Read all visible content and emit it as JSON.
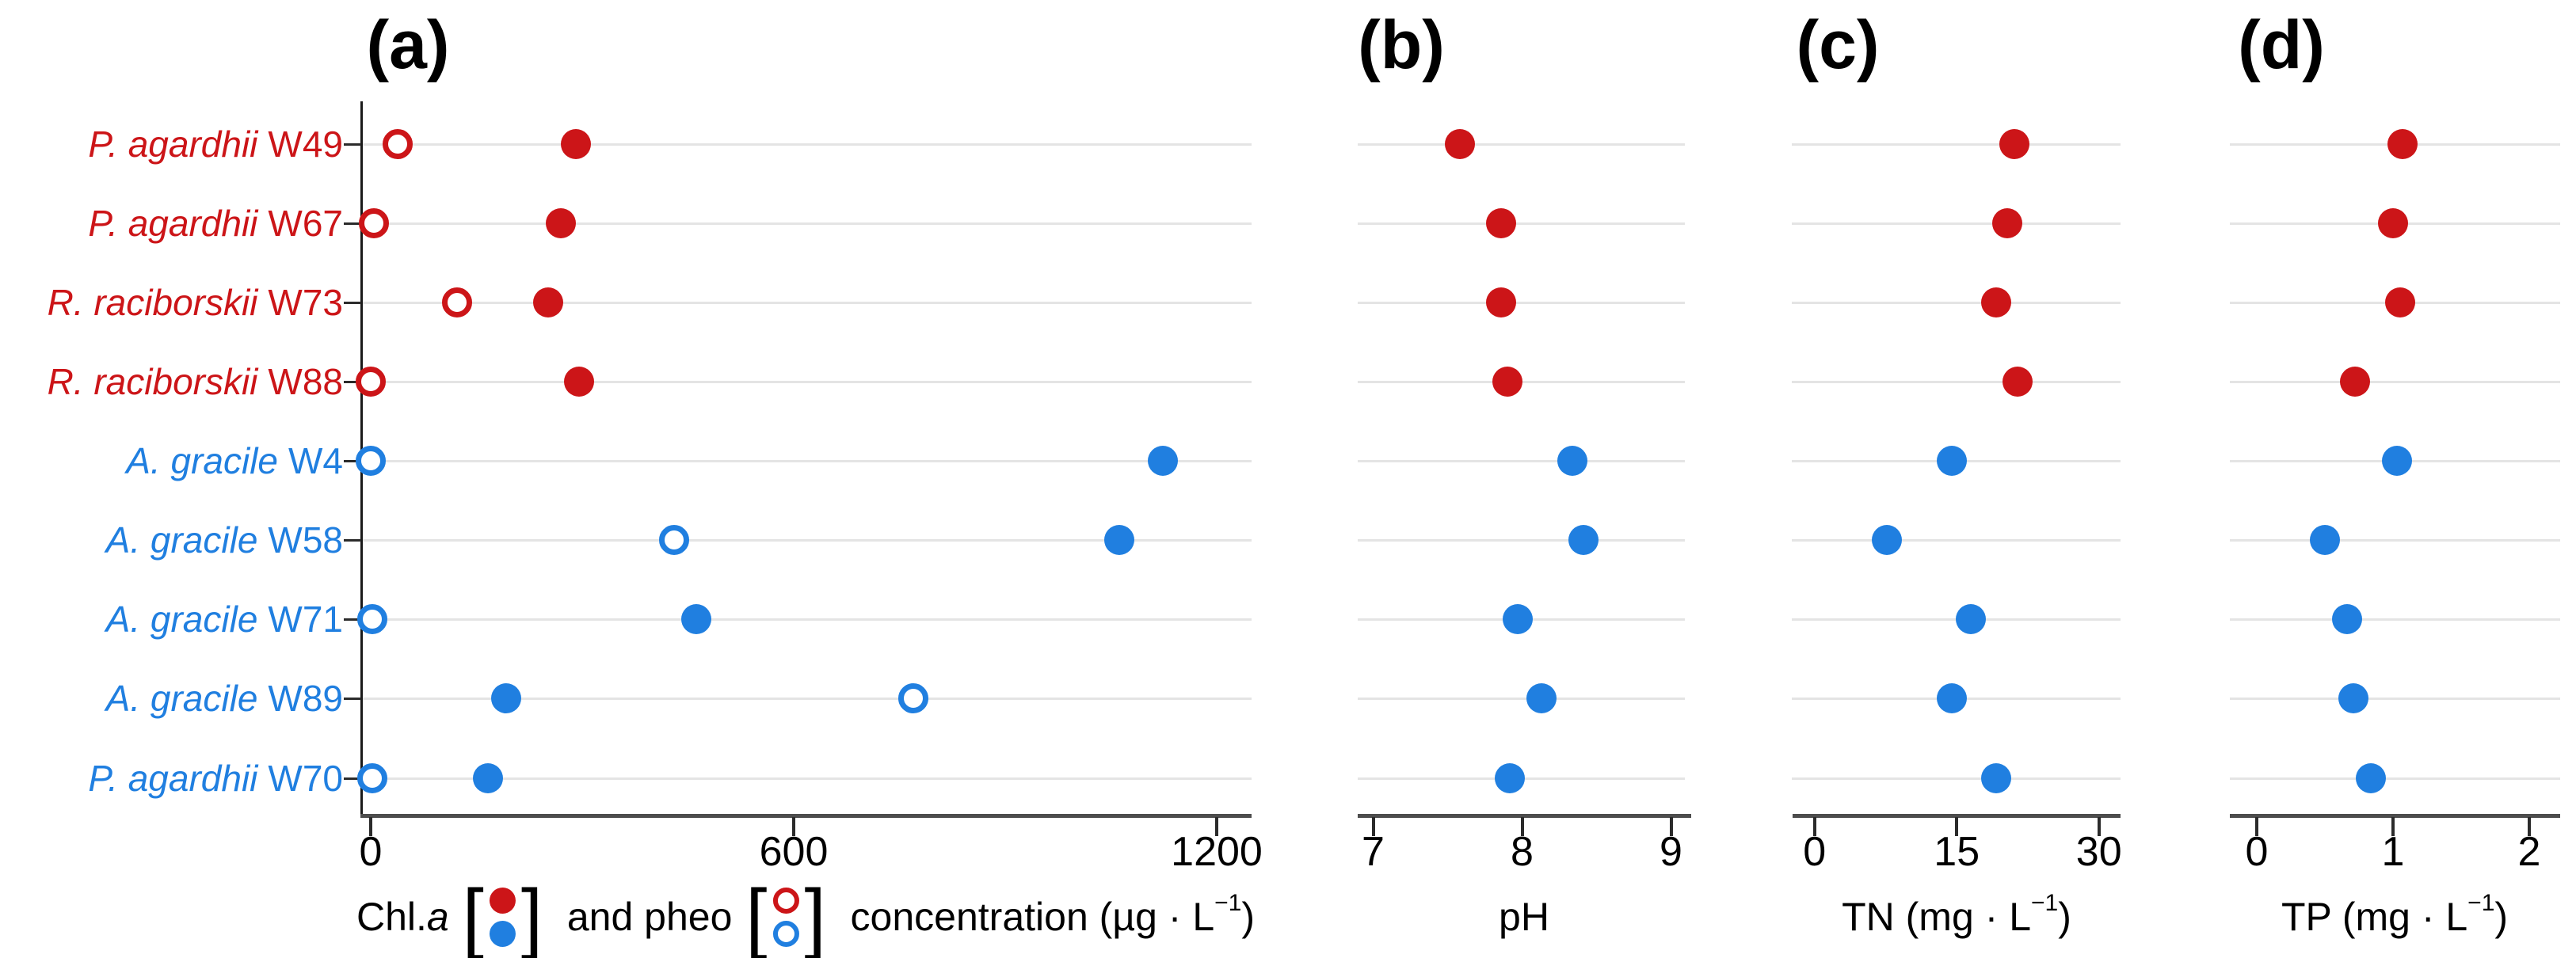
{
  "figure": {
    "background": "#FFFFFF"
  },
  "chart_data": {
    "type": "scatter",
    "subtype": "horizontal-dot-plot",
    "grid": "on",
    "categories": [
      "P. agardhii W49",
      "P. agardhii W67",
      "R. raciborskii W73",
      "R. raciborskii W88",
      "A. gracile W4",
      "A. gracile W58",
      "A. gracile W71",
      "A. gracile W89",
      "P. agardhii W70"
    ],
    "rows": [
      {
        "species": "P. agardhii",
        "strain": "W49",
        "group": "red"
      },
      {
        "species": "P. agardhii",
        "strain": "W67",
        "group": "red"
      },
      {
        "species": "R. raciborskii",
        "strain": "W73",
        "group": "red"
      },
      {
        "species": "R. raciborskii",
        "strain": "W88",
        "group": "red"
      },
      {
        "species": "A. gracile",
        "strain": "W4",
        "group": "blue"
      },
      {
        "species": "A. gracile",
        "strain": "W58",
        "group": "blue"
      },
      {
        "species": "A. gracile",
        "strain": "W71",
        "group": "blue"
      },
      {
        "species": "A. gracile",
        "strain": "W89",
        "group": "blue"
      },
      {
        "species": "P. agardhii",
        "strain": "W70",
        "group": "blue"
      }
    ],
    "colors": {
      "red": "#CC1518",
      "blue": "#207FE0",
      "gridline": "#E4E4E4",
      "axis_line": "#4D4D4D",
      "tick": "#2B2B2B",
      "text": "#000000"
    },
    "panels": [
      {
        "id": "a",
        "panel_label": "(a)",
        "xlim": [
          0,
          1250
        ],
        "tick_values": [
          0,
          600,
          1200
        ],
        "tick_labels": [
          "0",
          "600",
          "1200"
        ],
        "xlabel_parts": [
          {
            "type": "text",
            "text": "Chl."
          },
          {
            "type": "italic",
            "text": "a"
          },
          {
            "type": "text",
            "text": " "
          },
          {
            "type": "bracket",
            "text": "["
          },
          {
            "type": "legend",
            "style": "filled"
          },
          {
            "type": "bracket",
            "text": "]"
          },
          {
            "type": "text",
            "text": "  and pheo "
          },
          {
            "type": "bracket",
            "text": "["
          },
          {
            "type": "legend",
            "style": "open"
          },
          {
            "type": "bracket",
            "text": "]"
          },
          {
            "type": "text",
            "text": "  concentration (µg · L"
          },
          {
            "type": "sup",
            "text": "−1"
          },
          {
            "type": "text",
            "text": ")"
          }
        ],
        "series": [
          {
            "name": "chl-a",
            "marker": "filled",
            "values": [
              291,
              270,
              252,
              296,
              1124,
              1062,
              462,
              192,
              166
            ]
          },
          {
            "name": "pheo",
            "marker": "open",
            "values": [
              38,
              5,
              122,
              0,
              0,
              430,
              2,
              770,
              2
            ]
          }
        ]
      },
      {
        "id": "b",
        "panel_label": "(b)",
        "xlim": [
          7,
          9
        ],
        "tick_values": [
          7,
          8,
          9
        ],
        "tick_labels": [
          "7",
          "8",
          "9"
        ],
        "xlabel_parts": [
          {
            "type": "text",
            "text": "pH"
          }
        ],
        "series": [
          {
            "name": "pH",
            "marker": "filled",
            "values": [
              7.58,
              7.86,
              7.86,
              7.9,
              8.34,
              8.41,
              7.97,
              8.13,
              7.92
            ]
          }
        ]
      },
      {
        "id": "c",
        "panel_label": "(c)",
        "xlim": [
          0,
          30
        ],
        "tick_values": [
          0,
          15,
          30
        ],
        "tick_labels": [
          "0",
          "15",
          "30"
        ],
        "xlabel_parts": [
          {
            "type": "text",
            "text": "TN (mg · L"
          },
          {
            "type": "sup",
            "text": "−1"
          },
          {
            "type": "text",
            "text": ")"
          }
        ],
        "series": [
          {
            "name": "TN",
            "marker": "filled",
            "values": [
              21.1,
              20.3,
              19.2,
              21.4,
              14.5,
              7.6,
              16.5,
              14.5,
              19.2
            ]
          }
        ]
      },
      {
        "id": "d",
        "panel_label": "(d)",
        "xlim": [
          0,
          2
        ],
        "tick_values": [
          0,
          1,
          2
        ],
        "tick_labels": [
          "0",
          "1",
          "2"
        ],
        "xlabel_parts": [
          {
            "type": "text",
            "text": "TP (mg · L"
          },
          {
            "type": "sup",
            "text": "−1"
          },
          {
            "type": "text",
            "text": ")"
          }
        ],
        "series": [
          {
            "name": "TP",
            "marker": "filled",
            "values": [
              1.07,
              1.0,
              1.05,
              0.72,
              1.03,
              0.5,
              0.66,
              0.71,
              0.84
            ]
          }
        ]
      }
    ]
  }
}
